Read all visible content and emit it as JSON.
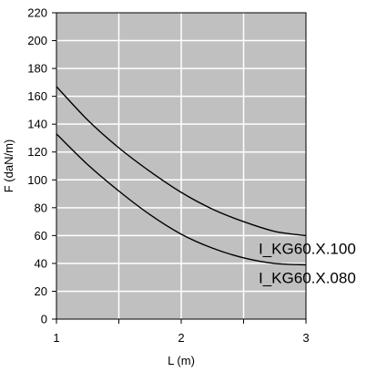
{
  "chart_data": {
    "type": "line",
    "xlabel": "L (m)",
    "ylabel": "F (daN/m)",
    "xlim": [
      1,
      3
    ],
    "ylim": [
      0,
      220
    ],
    "x_ticks": [
      1,
      1.5,
      2,
      2.5,
      3
    ],
    "x_tick_labels": [
      "1",
      "",
      "2",
      "",
      "3"
    ],
    "y_ticks": [
      0,
      20,
      40,
      60,
      80,
      100,
      120,
      140,
      160,
      180,
      200,
      220
    ],
    "grid": true,
    "plot_background": "#c0c0c0",
    "grid_color": "#ffffff",
    "line_color": "#000000",
    "series": [
      {
        "name": "I_KG60.X.100",
        "x": [
          1.0,
          1.25,
          1.5,
          1.75,
          2.0,
          2.25,
          2.5,
          2.75,
          3.0
        ],
        "y": [
          167,
          143,
          123,
          106,
          91,
          79,
          70,
          63,
          60
        ]
      },
      {
        "name": "I_KG60.X.080",
        "x": [
          1.0,
          1.25,
          1.5,
          1.75,
          2.0,
          2.25,
          2.5,
          2.75,
          3.0
        ],
        "y": [
          133,
          111,
          92,
          75,
          61,
          51,
          44,
          40,
          39
        ]
      }
    ]
  }
}
